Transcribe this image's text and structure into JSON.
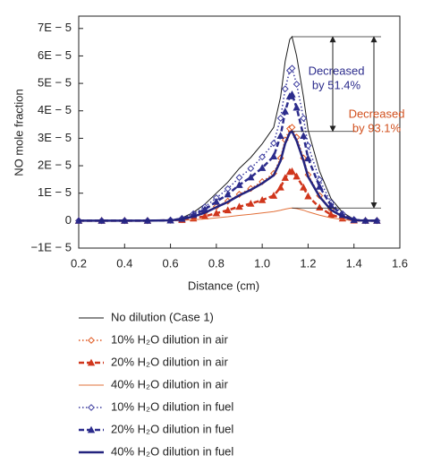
{
  "chart_data": {
    "type": "line",
    "xlabel": "Distance (cm)",
    "ylabel": "NO mole fraction",
    "xlim": [
      0.2,
      1.6
    ],
    "ylim": [
      -1e-05,
      7.45e-05
    ],
    "xticks": [
      0.2,
      0.4,
      0.6,
      0.8,
      {
        "value": 1,
        "label": "1.0"
      },
      1.2,
      1.4,
      1.6
    ],
    "yticks": [
      {
        "value": -1e-05,
        "label": "−1E − 5"
      },
      0,
      {
        "value": 1e-05,
        "label": "1E − 5"
      },
      {
        "value": 2e-05,
        "label": "2E − 5"
      },
      {
        "value": 3e-05,
        "label": "3E − 5"
      },
      {
        "value": 4e-05,
        "label": "4E − 5"
      },
      {
        "value": 5e-05,
        "label": "5E − 5"
      },
      {
        "value": 6e-05,
        "label": "6E − 5"
      },
      {
        "value": 7e-05,
        "label": "7E − 5"
      }
    ],
    "x": [
      0.2,
      0.3,
      0.4,
      0.5,
      0.6,
      0.65,
      0.7,
      0.75,
      0.8,
      0.85,
      0.9,
      0.95,
      1.0,
      1.05,
      1.08,
      1.1,
      1.12,
      1.13,
      1.15,
      1.18,
      1.2,
      1.25,
      1.3,
      1.35,
      1.4,
      1.45,
      1.5
    ],
    "series": [
      {
        "name": "No dilution (Case 1)",
        "color": "#1a1a1a",
        "linestyle": "solid",
        "linewidth": 1,
        "marker": "none",
        "values": [
          0,
          0,
          0,
          0,
          2e-07,
          1e-06,
          3e-06,
          6e-06,
          1e-05,
          1.4e-05,
          1.9e-05,
          2.3e-05,
          2.8e-05,
          3.4e-05,
          4.5e-05,
          5.8e-05,
          6.6e-05,
          6.7e-05,
          6e-05,
          4.5e-05,
          3.3e-05,
          1.8e-05,
          8e-06,
          3e-06,
          5e-07,
          0,
          0
        ]
      },
      {
        "name": "10% H₂O dilution in air",
        "color": "#e0571e",
        "linestyle": "dotted",
        "linewidth": 1.5,
        "marker": "diamond",
        "values": [
          0,
          0,
          0,
          0,
          1e-07,
          5e-07,
          1.5e-06,
          3e-06,
          5.1e-06,
          7.1e-06,
          9.6e-06,
          1.17e-05,
          1.42e-05,
          1.72e-05,
          2.28e-05,
          2.94e-05,
          3.35e-05,
          3.4e-05,
          3.04e-05,
          2.28e-05,
          1.67e-05,
          9.1e-06,
          4.1e-06,
          1.5e-06,
          3e-07,
          0,
          0
        ]
      },
      {
        "name": "20% H₂O dilution in air",
        "color": "#d0361c",
        "linestyle": "dashed",
        "linewidth": 2.5,
        "marker": "triangle",
        "values": [
          0,
          0,
          0,
          0,
          1e-07,
          3e-07,
          8e-07,
          1.6e-06,
          2.7e-06,
          3.8e-06,
          5.1e-06,
          6.2e-06,
          7.5e-06,
          9.1e-06,
          1.21e-05,
          1.56e-05,
          1.78e-05,
          1.8e-05,
          1.61e-05,
          1.21e-05,
          8.9e-06,
          4.8e-06,
          2.2e-06,
          8e-07,
          1e-07,
          0,
          0
        ]
      },
      {
        "name": "40% H₂O dilution in air",
        "color": "#e2703a",
        "linestyle": "solid",
        "linewidth": 1,
        "marker": "none",
        "values": [
          0,
          0,
          0,
          0,
          0,
          1e-07,
          3e-07,
          6e-07,
          1e-06,
          1.4e-06,
          1.9e-06,
          2.3e-06,
          2.8e-06,
          3.3e-06,
          3.8e-06,
          4.2e-06,
          4.5e-06,
          4.6e-06,
          4.4e-06,
          3.8e-06,
          3.2e-06,
          2e-06,
          1e-06,
          4e-07,
          1e-07,
          0,
          0
        ]
      },
      {
        "name": "10% H₂O dilution in fuel",
        "color": "#3a3a9e",
        "linestyle": "dotted",
        "linewidth": 1.5,
        "marker": "diamond",
        "values": [
          0,
          0,
          0,
          0,
          2e-07,
          8e-07,
          2.5e-06,
          5e-06,
          8.3e-06,
          1.16e-05,
          1.57e-05,
          1.9e-05,
          2.32e-05,
          2.82e-05,
          3.73e-05,
          4.8e-05,
          5.47e-05,
          5.55e-05,
          4.97e-05,
          3.73e-05,
          2.73e-05,
          1.49e-05,
          6.6e-06,
          2.5e-06,
          4e-07,
          0,
          0
        ]
      },
      {
        "name": "20% H₂O dilution in fuel",
        "color": "#2c2c8c",
        "linestyle": "dashed",
        "linewidth": 2.5,
        "marker": "triangle",
        "values": [
          0,
          0,
          0,
          0,
          1e-07,
          7e-07,
          2.1e-06,
          4.1e-06,
          6.9e-06,
          9.6e-06,
          1.3e-05,
          1.58e-05,
          1.92e-05,
          2.34e-05,
          3.09e-05,
          3.98e-05,
          4.53e-05,
          4.6e-05,
          4.12e-05,
          3.09e-05,
          2.27e-05,
          1.24e-05,
          5.5e-06,
          2.1e-06,
          3e-07,
          0,
          0
        ]
      },
      {
        "name": "40% H₂O dilution in fuel",
        "color": "#23237e",
        "linestyle": "solid",
        "linewidth": 2.5,
        "marker": "none",
        "values": [
          0,
          0,
          0,
          0,
          1e-07,
          5e-07,
          1.5e-06,
          2.9e-06,
          4.9e-06,
          6.8e-06,
          9.2e-06,
          1.12e-05,
          1.36e-05,
          1.65e-05,
          2.18e-05,
          2.81e-05,
          3.2e-05,
          3.25e-05,
          2.91e-05,
          2.18e-05,
          1.6e-05,
          8.7e-06,
          3.9e-06,
          1.5e-06,
          2e-07,
          0,
          0
        ]
      }
    ],
    "annotations": [
      {
        "lines": [
          "Decreased",
          "by 51.4%"
        ],
        "color": "#2b2b8c"
      },
      {
        "lines": [
          "Decreased",
          "by 93.1%"
        ],
        "color": "#d2501e"
      }
    ]
  }
}
